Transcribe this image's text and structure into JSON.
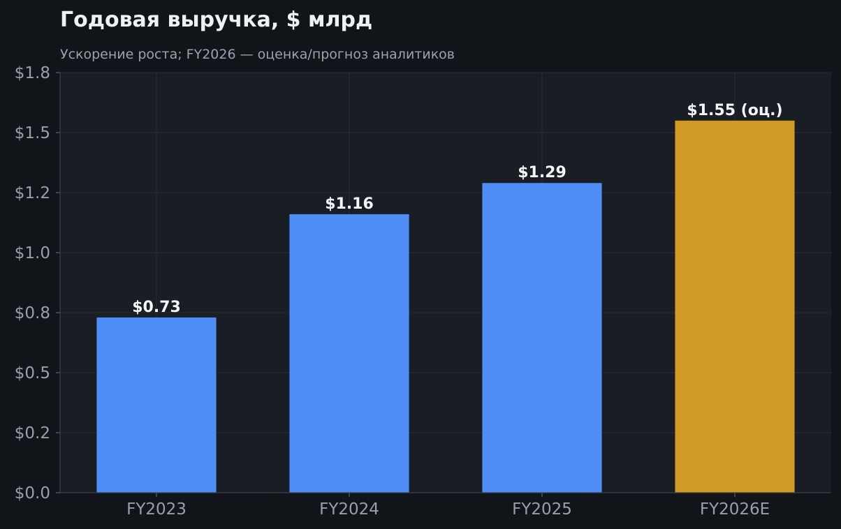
{
  "header": {
    "title": "Годовая выручка, $ млрд",
    "subtitle": "Ускорение роста; FY2026 — оценка/прогноз аналитиков"
  },
  "colors": {
    "background": "#111418",
    "plot_background": "#191d24",
    "grid": "#262b33",
    "actual_bar": "#4f8ef7",
    "estimate_bar": "#d19a26",
    "text": "#f3f5f8",
    "muted_text": "#98a1ab"
  },
  "chart_data": {
    "type": "bar",
    "title": "Годовая выручка, $ млрд",
    "subtitle": "Ускорение роста; FY2026 — оценка/прогноз аналитиков",
    "categories": [
      "FY2023",
      "FY2024",
      "FY2025",
      "FY2026E"
    ],
    "values": [
      0.73,
      1.16,
      1.29,
      1.55
    ],
    "value_labels": [
      "$0.73",
      "$1.16",
      "$1.29",
      "$1.55 (оц.)"
    ],
    "estimated": [
      false,
      false,
      false,
      true
    ],
    "ylim": [
      0,
      1.75
    ],
    "yticks": [
      0,
      0.25,
      0.5,
      0.75,
      1.0,
      1.25,
      1.5,
      1.75
    ],
    "ytick_labels": [
      "$0.0",
      "$0.2",
      "$0.5",
      "$0.8",
      "$1.0",
      "$1.2",
      "$1.5",
      "$1.8"
    ],
    "xlabel": "",
    "ylabel": "",
    "grid": true,
    "legend": false
  }
}
